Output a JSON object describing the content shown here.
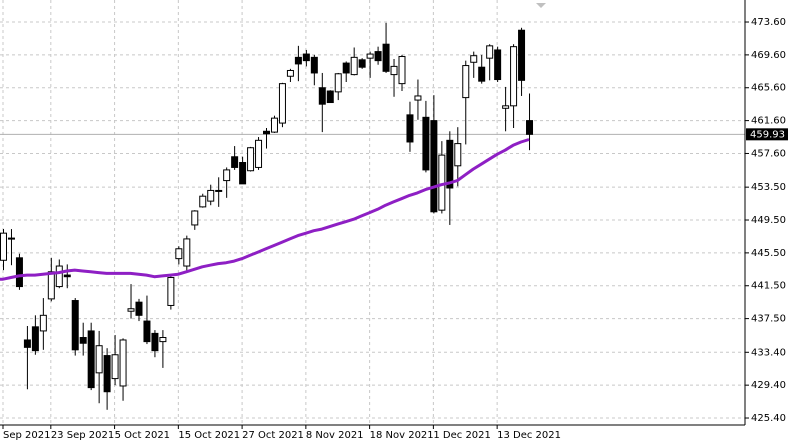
{
  "chart_data": {
    "type": "candlestick",
    "categories": [
      "Sep 2021",
      null,
      null,
      null,
      null,
      null,
      "23 Sep 2021",
      null,
      null,
      null,
      null,
      null,
      null,
      null,
      "5 Oct 2021",
      null,
      null,
      null,
      null,
      null,
      null,
      null,
      "15 Oct 2021",
      null,
      null,
      null,
      null,
      null,
      null,
      null,
      "27 Oct 2021",
      null,
      null,
      null,
      null,
      null,
      null,
      null,
      "8 Nov 2021",
      null,
      null,
      null,
      null,
      null,
      null,
      null,
      "18 Nov 2021",
      null,
      null,
      null,
      null,
      null,
      null,
      null,
      "1 Dec 2021",
      null,
      null,
      null,
      null,
      null,
      null,
      null,
      "13 Dec 2021",
      null,
      null,
      null,
      null
    ],
    "open": [
      444.6,
      447.3,
      444.9,
      434.9,
      436.5,
      436.0,
      439.9,
      441.4,
      442.8,
      439.7,
      435.2,
      436.0,
      430.9,
      433.0,
      430.2,
      429.3,
      438.4,
      439.5,
      437.2,
      435.7,
      434.7,
      439.1,
      444.8,
      443.9,
      448.9,
      451.1,
      451.8,
      453.1,
      454.3,
      457.2,
      456.5,
      455.5,
      455.9,
      460.3,
      460.2,
      461.3,
      467.0,
      469.3,
      469.7,
      469.3,
      465.6,
      465.2,
      465.1,
      468.6,
      467.2,
      469.0,
      469.2,
      470.0,
      470.9,
      467.2,
      466.1,
      462.3,
      464.1,
      462.0,
      461.6,
      450.7,
      459.2,
      456.1,
      464.4,
      468.7,
      468.1,
      469.2,
      470.2,
      463.1,
      463.4,
      472.6,
      461.6
    ],
    "high": [
      448.4,
      448.4,
      445.4,
      436.6,
      437.9,
      440.0,
      444.9,
      444.7,
      444.1,
      440.0,
      437.0,
      437.0,
      436.0,
      433.9,
      435.5,
      435.1,
      441.7,
      439.9,
      440.3,
      436.1,
      436.1,
      442.7,
      446.3,
      447.6,
      450.7,
      452.7,
      453.8,
      454.7,
      455.9,
      458.5,
      457.2,
      458.4,
      459.6,
      460.7,
      462.2,
      466.2,
      467.9,
      470.7,
      470.2,
      469.6,
      467.4,
      465.3,
      467.4,
      468.8,
      470.5,
      469.2,
      470.0,
      470.6,
      473.5,
      469.1,
      469.6,
      463.9,
      466.6,
      464.0,
      464.7,
      459.1,
      460.3,
      460.8,
      468.9,
      470.0,
      469.6,
      470.9,
      470.6,
      465.7,
      470.9,
      472.9,
      464.9
    ],
    "low": [
      443.4,
      444.0,
      441.0,
      428.9,
      433.1,
      433.7,
      439.6,
      441.2,
      441.2,
      433.0,
      433.0,
      428.8,
      427.2,
      426.4,
      429.4,
      427.5,
      437.5,
      437.2,
      434.4,
      432.8,
      431.5,
      438.6,
      444.1,
      443.3,
      448.3,
      451.0,
      451.3,
      451.1,
      452.2,
      455.6,
      453.9,
      455.4,
      455.6,
      458.2,
      460.1,
      460.8,
      466.3,
      466.4,
      468.2,
      465.9,
      460.2,
      463.8,
      464.1,
      466.3,
      467.1,
      467.9,
      466.8,
      468.4,
      467.4,
      464.5,
      465.2,
      457.8,
      461.7,
      455.3,
      450.3,
      450.3,
      448.9,
      453.6,
      458.7,
      466.8,
      466.1,
      466.5,
      466.3,
      460.3,
      460.7,
      464.6,
      458.0
    ],
    "close": [
      447.9,
      447.2,
      441.4,
      434.0,
      433.6,
      437.9,
      443.2,
      443.9,
      442.6,
      433.7,
      434.5,
      429.1,
      434.2,
      428.6,
      433.1,
      434.9,
      438.7,
      437.9,
      434.7,
      433.6,
      435.2,
      442.5,
      446.0,
      447.2,
      450.6,
      452.4,
      453.1,
      453.1,
      455.6,
      455.9,
      453.9,
      458.3,
      459.2,
      460.0,
      461.9,
      466.1,
      467.7,
      468.5,
      468.9,
      467.4,
      463.6,
      463.8,
      467.3,
      467.4,
      469.3,
      468.1,
      469.7,
      468.9,
      467.6,
      468.2,
      469.4,
      459.0,
      464.6,
      455.6,
      450.5,
      457.4,
      453.4,
      458.8,
      468.3,
      469.5,
      466.4,
      470.7,
      466.6,
      463.4,
      470.6,
      466.5,
      459.93
    ],
    "up_color": "#ffffff",
    "down_color": "#000000",
    "moving_average": {
      "color": "#8e1fc4",
      "values": [
        442.3,
        442.5,
        442.7,
        442.8,
        442.8,
        442.9,
        443.0,
        443.1,
        443.3,
        443.4,
        443.3,
        443.2,
        443.1,
        443.0,
        443.0,
        443.0,
        443.0,
        442.9,
        442.8,
        442.6,
        442.7,
        442.8,
        442.9,
        443.2,
        443.5,
        443.8,
        444.0,
        444.2,
        444.3,
        444.5,
        444.8,
        445.2,
        445.6,
        446.0,
        446.4,
        446.8,
        447.2,
        447.6,
        447.9,
        448.2,
        448.4,
        448.7,
        449.0,
        449.3,
        449.6,
        450.0,
        450.4,
        450.8,
        451.3,
        451.7,
        452.1,
        452.5,
        452.8,
        453.2,
        453.5,
        453.8,
        454.0,
        454.3,
        455.0,
        455.7,
        456.3,
        456.9,
        457.5,
        458.0,
        458.6,
        459.0,
        459.3
      ]
    },
    "current_price": 459.93,
    "ylim": [
      424.55,
      476.28
    ],
    "yticks": [
      {
        "value": 473.6,
        "label": "473.60"
      },
      {
        "value": 469.6,
        "label": "469.60"
      },
      {
        "value": 465.6,
        "label": "465.60"
      },
      {
        "value": 461.6,
        "label": "461.60"
      },
      {
        "value": 457.6,
        "label": "457.60"
      },
      {
        "value": 453.5,
        "label": "453.50"
      },
      {
        "value": 449.5,
        "label": "449.50"
      },
      {
        "value": 445.5,
        "label": "445.50"
      },
      {
        "value": 441.5,
        "label": "441.50"
      },
      {
        "value": 437.5,
        "label": "437.50"
      },
      {
        "value": 433.4,
        "label": "433.40"
      },
      {
        "value": 429.4,
        "label": "429.40"
      },
      {
        "value": 425.4,
        "label": "425.40"
      }
    ],
    "grid": true
  }
}
